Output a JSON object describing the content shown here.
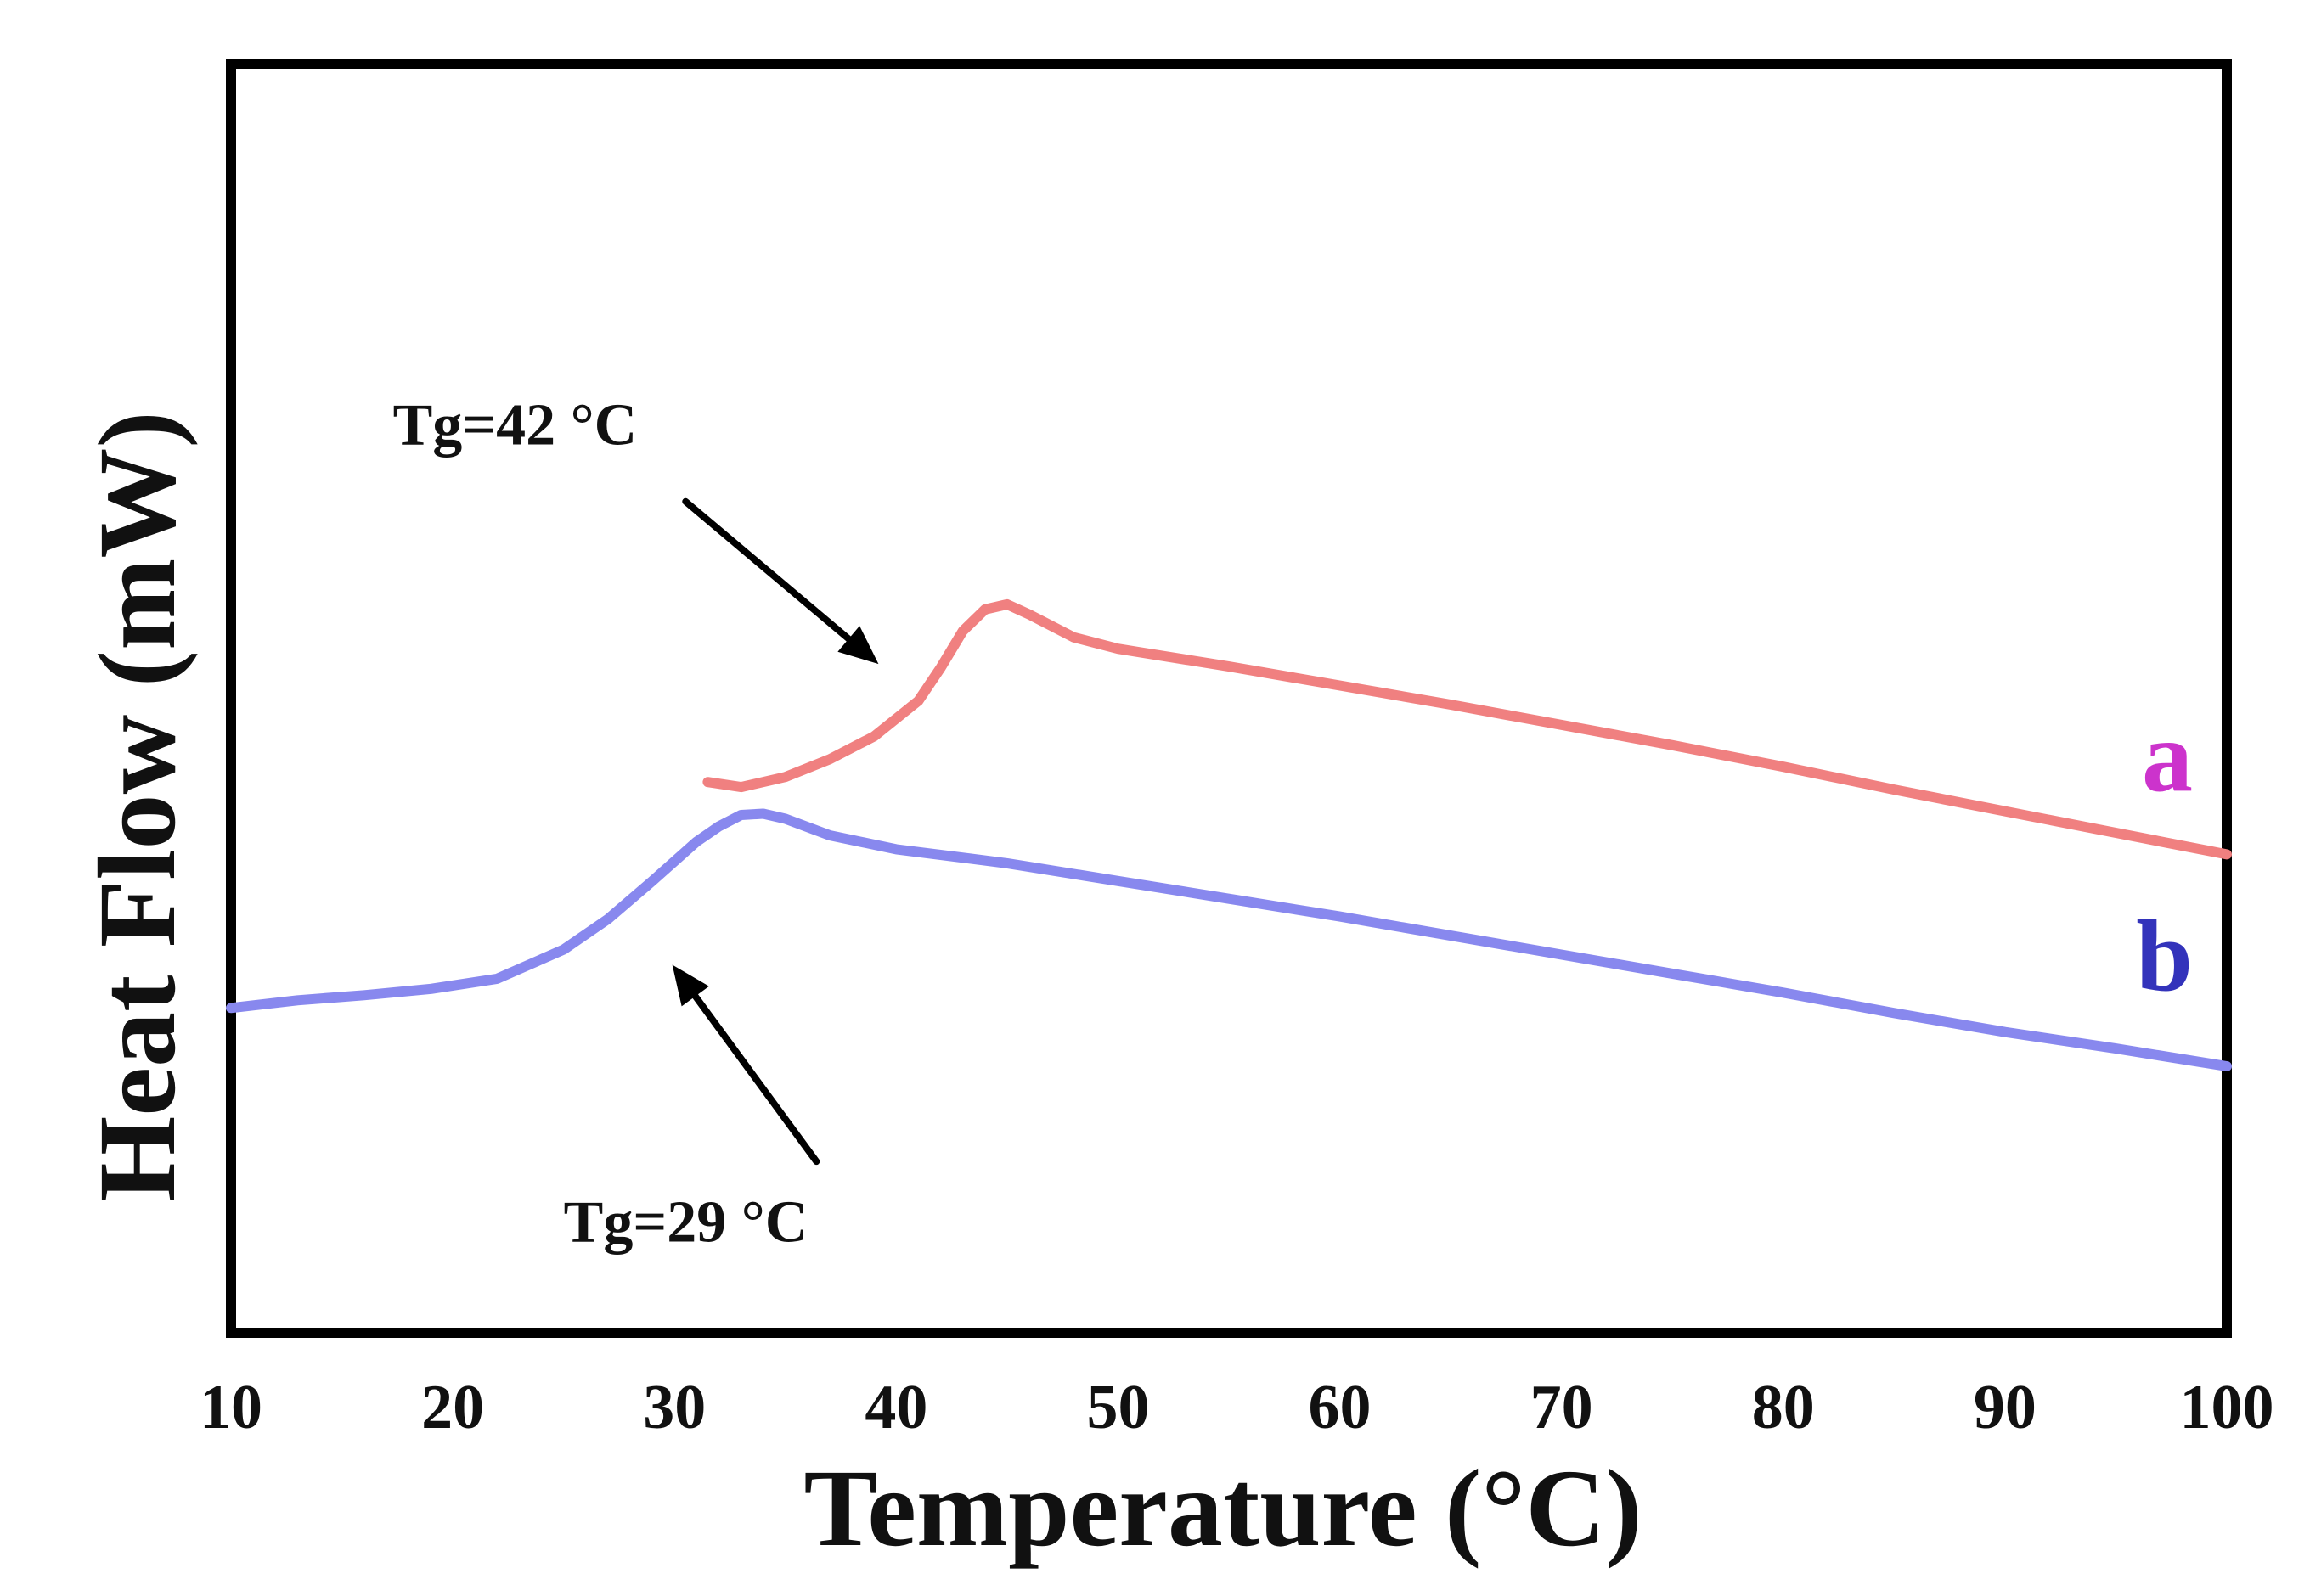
{
  "chart_data": {
    "type": "line",
    "xlabel": "Temperature (°C)",
    "ylabel": "Heat Flow (mW)",
    "xlim": [
      10,
      100
    ],
    "ylim": [
      0,
      100
    ],
    "xticks": [
      "10",
      "20",
      "30",
      "40",
      "50",
      "60",
      "70",
      "80",
      "90",
      "100"
    ],
    "yticks": [],
    "grid": false,
    "series": [
      {
        "name": "a",
        "color": "#f08080",
        "label_color": "#cc33cc",
        "x": [
          31.5,
          33,
          35,
          37,
          39,
          41,
          42,
          43,
          44,
          45,
          46,
          48,
          50,
          55,
          60,
          65,
          70,
          75,
          80,
          85,
          90,
          95,
          100
        ],
        "y": [
          43.4,
          43.0,
          43.8,
          45.2,
          47.0,
          49.8,
          52.4,
          55.3,
          57.0,
          57.4,
          56.6,
          54.8,
          53.9,
          52.5,
          51.0,
          49.5,
          47.9,
          46.3,
          44.6,
          42.8,
          41.1,
          39.4,
          37.7
        ]
      },
      {
        "name": "b",
        "color": "#8888ee",
        "label_color": "#3333bb",
        "x": [
          10,
          13,
          16,
          19,
          22,
          25,
          27,
          29,
          31,
          32,
          33,
          34,
          35,
          37,
          40,
          45,
          50,
          55,
          60,
          65,
          70,
          75,
          80,
          85,
          90,
          95,
          100
        ],
        "y": [
          25.6,
          26.2,
          26.6,
          27.1,
          27.9,
          30.2,
          32.6,
          35.6,
          38.7,
          39.9,
          40.8,
          40.9,
          40.5,
          39.2,
          38.1,
          37.0,
          35.6,
          34.2,
          32.8,
          31.3,
          29.8,
          28.3,
          26.8,
          25.2,
          23.7,
          22.4,
          21.0
        ]
      }
    ],
    "annotations": [
      {
        "text": "Tg=42 °C",
        "target_x": 39.2,
        "target_y": 52.7,
        "from_x": 30.5,
        "from_y": 65.5,
        "text_x": 17.3,
        "text_y": 70.0,
        "anchor": "start"
      },
      {
        "text": "Tg=29 °C",
        "target_x": 29.9,
        "target_y": 29.0,
        "from_x": 36.4,
        "from_y": 13.5,
        "text_x": 25.0,
        "text_y": 7.2,
        "anchor": "start"
      }
    ]
  }
}
